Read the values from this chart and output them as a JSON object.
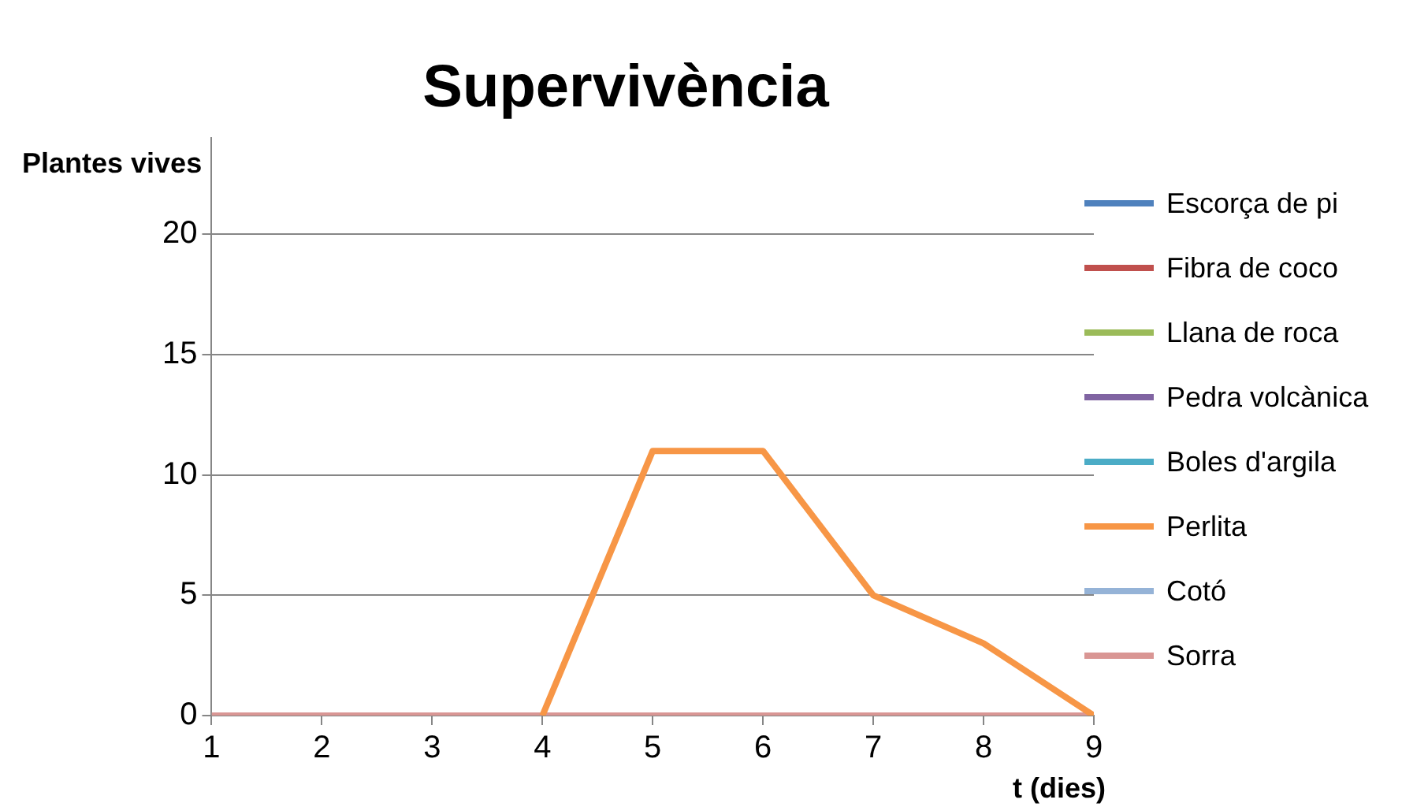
{
  "chart_data": {
    "type": "line",
    "title": "Supervivència",
    "xlabel": "t (dies)",
    "ylabel": "Plantes vives",
    "x": [
      1,
      2,
      3,
      4,
      5,
      6,
      7,
      8,
      9
    ],
    "xlim": [
      1,
      9
    ],
    "xticks": [
      1,
      2,
      3,
      4,
      5,
      6,
      7,
      8,
      9
    ],
    "ylim": [
      0,
      24
    ],
    "yticks": [
      0,
      5,
      10,
      15,
      20
    ],
    "grid": "y",
    "legend": "right",
    "marker": "none",
    "line_style": "solid",
    "series": [
      {
        "name": "Escorça de pi",
        "color": "#4f81bd",
        "values": [
          null,
          null,
          null,
          null,
          null,
          null,
          null,
          null,
          null
        ]
      },
      {
        "name": "Fibra de coco",
        "color": "#c0504d",
        "values": [
          null,
          null,
          null,
          null,
          null,
          null,
          null,
          null,
          null
        ]
      },
      {
        "name": "Llana de roca",
        "color": "#9bbb59",
        "values": [
          null,
          null,
          null,
          null,
          null,
          null,
          null,
          null,
          null
        ]
      },
      {
        "name": "Pedra volcànica",
        "color": "#8064a2",
        "values": [
          null,
          null,
          null,
          null,
          null,
          null,
          null,
          null,
          null
        ]
      },
      {
        "name": "Boles d'argila",
        "color": "#4bacc6",
        "values": [
          null,
          null,
          null,
          null,
          null,
          null,
          null,
          null,
          null
        ]
      },
      {
        "name": "Perlita",
        "color": "#f79646",
        "values": [
          null,
          null,
          null,
          0,
          11,
          11,
          5,
          3,
          0
        ]
      },
      {
        "name": "Cotó",
        "color": "#95b3d7",
        "values": [
          null,
          null,
          null,
          null,
          null,
          null,
          null,
          null,
          null
        ]
      },
      {
        "name": "Sorra",
        "color": "#d99694",
        "values": [
          0,
          0,
          0,
          0,
          0,
          0,
          0,
          0,
          0
        ]
      }
    ]
  }
}
